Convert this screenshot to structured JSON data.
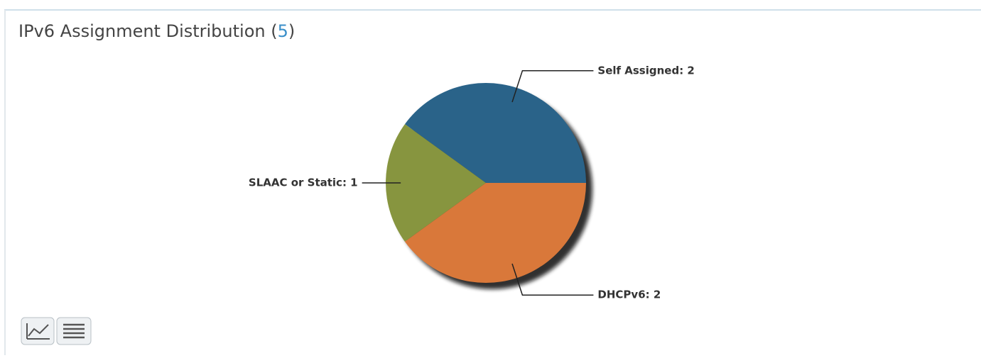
{
  "chart_data": {
    "type": "pie",
    "title": "IPv6 Assignment Distribution",
    "total": 5,
    "values": [
      2,
      1,
      2
    ],
    "value_labels": [
      "Self Assigned: 2",
      "SLAAC or Static: 1",
      "DHCPv6: 2"
    ],
    "colors": [
      "#2a6389",
      "#87953f",
      "#d9783a"
    ],
    "start_angle": 0,
    "direction": "counterclockwise"
  }
}
